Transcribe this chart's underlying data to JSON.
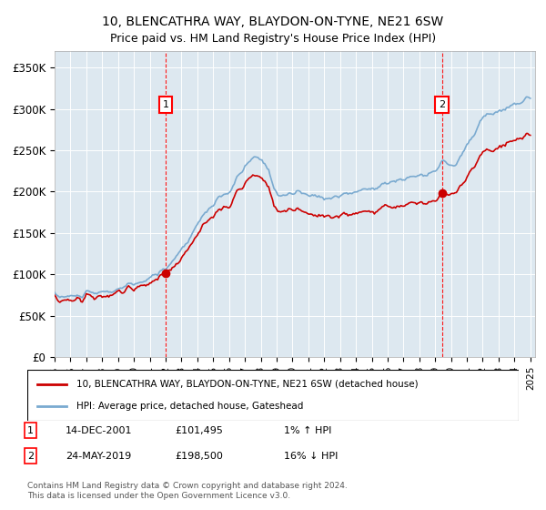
{
  "title": "10, BLENCATHRA WAY, BLAYDON-ON-TYNE, NE21 6SW",
  "subtitle": "Price paid vs. HM Land Registry's House Price Index (HPI)",
  "hpi_label": "HPI: Average price, detached house, Gateshead",
  "property_label": "10, BLENCATHRA WAY, BLAYDON-ON-TYNE, NE21 6SW (detached house)",
  "sale1_date": "14-DEC-2001",
  "sale1_price": 101495,
  "sale1_hpi_text": "1% ↑ HPI",
  "sale2_date": "24-MAY-2019",
  "sale2_price": 198500,
  "sale2_hpi_text": "16% ↓ HPI",
  "copyright": "Contains HM Land Registry data © Crown copyright and database right 2024.\nThis data is licensed under the Open Government Licence v3.0.",
  "ylim": [
    0,
    370000
  ],
  "yticks": [
    0,
    50000,
    100000,
    150000,
    200000,
    250000,
    300000,
    350000
  ],
  "ytick_labels": [
    "£0",
    "£50K",
    "£100K",
    "£150K",
    "£200K",
    "£250K",
    "£300K",
    "£350K"
  ],
  "plot_bg": "#dde8f0",
  "hpi_color": "#7aaad0",
  "property_color": "#cc0000",
  "marker_color": "#cc0000",
  "sale1_x": 2002.0,
  "sale2_x": 2019.42,
  "xlim_left": 1995.0,
  "xlim_right": 2025.3
}
